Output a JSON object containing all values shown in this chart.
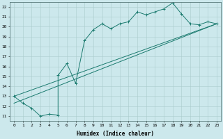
{
  "xlabel": "Humidex (Indice chaleur)",
  "xlim": [
    -0.5,
    23.5
  ],
  "ylim": [
    10.5,
    22.5
  ],
  "xticks": [
    0,
    1,
    2,
    3,
    4,
    5,
    6,
    7,
    8,
    9,
    10,
    11,
    12,
    13,
    14,
    15,
    16,
    17,
    18,
    19,
    20,
    21,
    22,
    23
  ],
  "yticks": [
    11,
    12,
    13,
    14,
    15,
    16,
    17,
    18,
    19,
    20,
    21,
    22
  ],
  "bg_color": "#cce8ec",
  "grid_color": "#aacccc",
  "line_color": "#1a7a6e",
  "line1_x": [
    0,
    1,
    2,
    3,
    4,
    5,
    5,
    6,
    7,
    8,
    9,
    10,
    11,
    12,
    13,
    14,
    15,
    16,
    17,
    18,
    19,
    20,
    21,
    22,
    23
  ],
  "line1_y": [
    13.0,
    12.3,
    11.8,
    11.0,
    11.2,
    11.1,
    15.1,
    16.3,
    14.3,
    18.6,
    19.7,
    20.3,
    19.8,
    20.3,
    20.5,
    21.5,
    21.2,
    21.5,
    21.8,
    22.4,
    21.3,
    20.3,
    20.2,
    20.5,
    20.3
  ],
  "line2_x": [
    0,
    23
  ],
  "line2_y": [
    13.0,
    20.3
  ],
  "line3_x": [
    0,
    23
  ],
  "line3_y": [
    12.3,
    20.3
  ]
}
